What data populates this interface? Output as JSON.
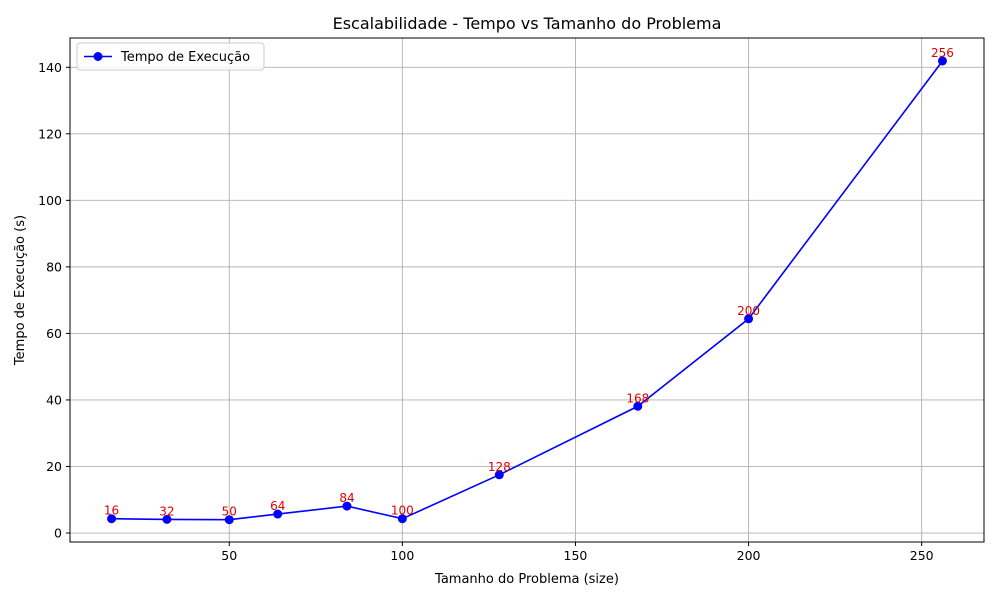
{
  "chart_data": {
    "type": "line",
    "title": "Escalabilidade - Tempo vs Tamanho do Problema",
    "xlabel": "Tamanho do Problema (size)",
    "ylabel": "Tempo de Execução (s)",
    "xlim": [
      4.0,
      268.0
    ],
    "ylim": [
      -2.7,
      148.8
    ],
    "xticks": [
      50,
      100,
      150,
      200,
      250
    ],
    "yticks": [
      0,
      20,
      40,
      60,
      80,
      100,
      120,
      140
    ],
    "grid": true,
    "legend_position": "top-left",
    "series": [
      {
        "name": "Tempo de Execução",
        "color": "#0000ff",
        "marker": "circle",
        "x": [
          16,
          32,
          50,
          64,
          84,
          100,
          128,
          168,
          200,
          256
        ],
        "y": [
          4.3,
          4.1,
          4.0,
          5.7,
          8.1,
          4.3,
          17.5,
          38.1,
          64.4,
          141.9
        ],
        "point_labels": [
          "16",
          "32",
          "50",
          "64",
          "84",
          "100",
          "128",
          "168",
          "200",
          "256"
        ],
        "label_color": "#e00000"
      }
    ]
  }
}
